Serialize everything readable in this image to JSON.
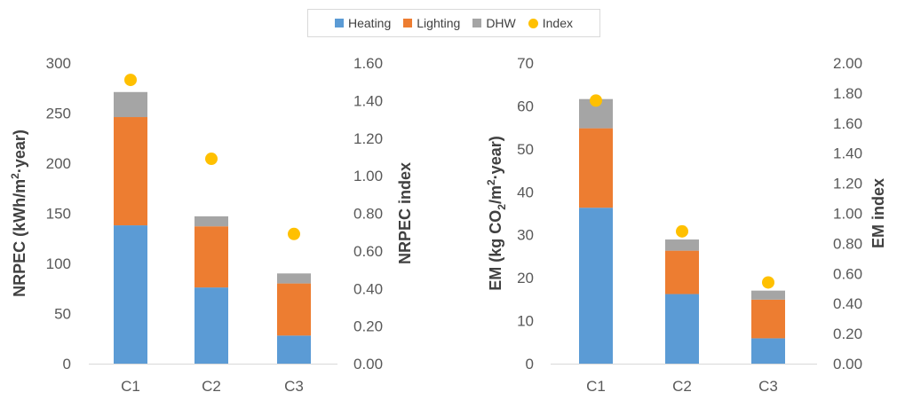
{
  "legend": [
    {
      "label": "Heating",
      "color": "#5b9bd5",
      "kind": "bar"
    },
    {
      "label": "Lighting",
      "color": "#ed7d31",
      "kind": "bar"
    },
    {
      "label": "DHW",
      "color": "#a5a5a5",
      "kind": "bar"
    },
    {
      "label": "Index",
      "color": "#ffc000",
      "kind": "dot"
    }
  ],
  "chart_data": [
    {
      "type": "bar",
      "stacked": true,
      "categories": [
        "C1",
        "C2",
        "C3"
      ],
      "series": [
        {
          "name": "Heating",
          "values": [
            138,
            76,
            28
          ]
        },
        {
          "name": "Lighting",
          "values": [
            108,
            61,
            52
          ]
        },
        {
          "name": "DHW",
          "values": [
            25,
            10,
            10
          ]
        }
      ],
      "secondary_series": {
        "name": "Index",
        "type": "scatter",
        "values": [
          1.51,
          1.09,
          0.69
        ]
      },
      "ylabel": "NRPEC (kWh/m²·year)",
      "ylabel_parts": [
        "NRPEC (kWh/m",
        "2",
        "·year)"
      ],
      "y2label": "NRPEC index",
      "ylim": [
        0,
        300
      ],
      "y2lim": [
        0,
        1.6
      ],
      "yticks": [
        "0",
        "50",
        "100",
        "150",
        "200",
        "250",
        "300"
      ],
      "y2ticks": [
        "0.00",
        "0.20",
        "0.40",
        "0.60",
        "0.80",
        "1.00",
        "1.20",
        "1.40",
        "1.60"
      ],
      "grid": false
    },
    {
      "type": "bar",
      "stacked": true,
      "categories": [
        "C1",
        "C2",
        "C3"
      ],
      "series": [
        {
          "name": "Heating",
          "values": [
            36.3,
            16.2,
            5.9
          ]
        },
        {
          "name": "Lighting",
          "values": [
            18.5,
            10.1,
            9.0
          ]
        },
        {
          "name": "DHW",
          "values": [
            6.8,
            2.6,
            2.1
          ]
        }
      ],
      "secondary_series": {
        "name": "Index",
        "type": "scatter",
        "values": [
          1.75,
          0.88,
          0.54
        ]
      },
      "ylabel": "EM (kg CO₂/m²·year)",
      "ylabel_parts": [
        "EM (kg CO",
        "2",
        "/m",
        "2",
        "·year)"
      ],
      "y2label": "EM index",
      "ylim": [
        0,
        70
      ],
      "y2lim": [
        0,
        2.0
      ],
      "yticks": [
        "0",
        "10",
        "20",
        "30",
        "40",
        "50",
        "60",
        "70"
      ],
      "y2ticks": [
        "0.00",
        "0.20",
        "0.40",
        "0.60",
        "0.80",
        "1.00",
        "1.20",
        "1.40",
        "1.60",
        "1.80",
        "2.00"
      ],
      "grid": false
    }
  ]
}
